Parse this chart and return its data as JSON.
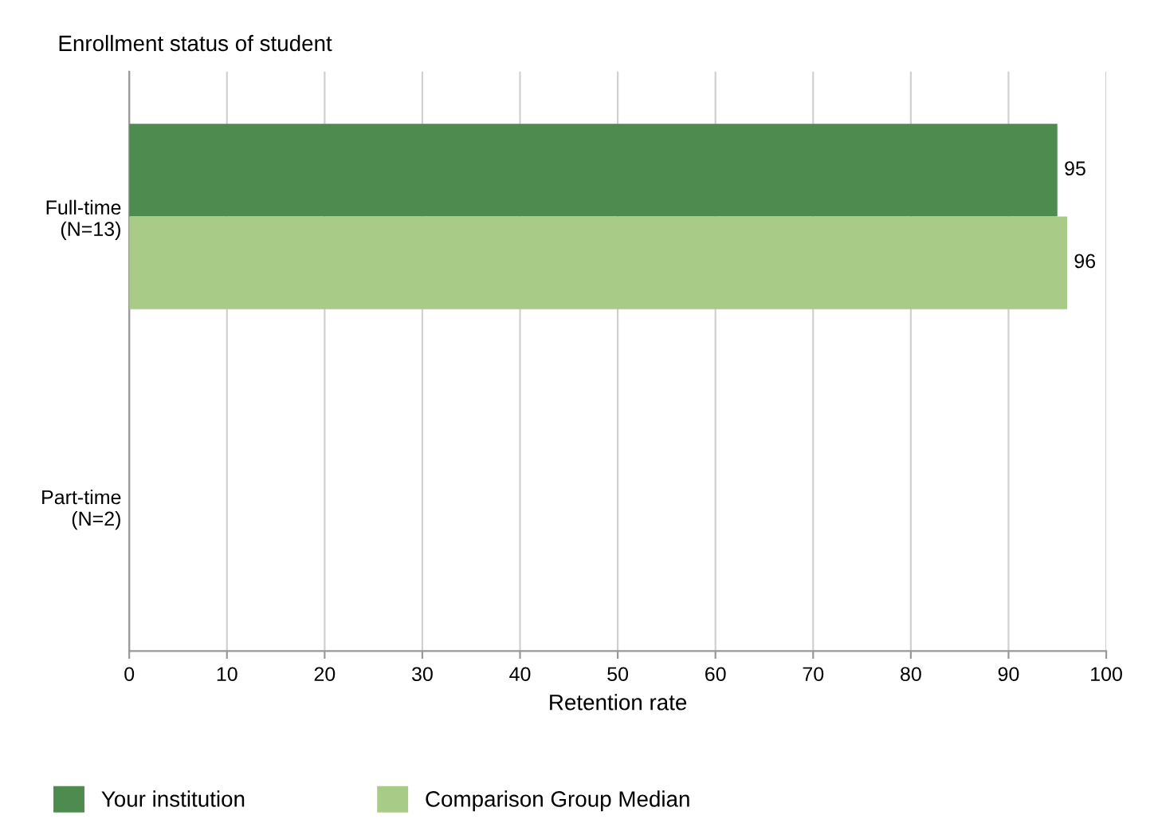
{
  "chart_data": {
    "type": "bar",
    "orientation": "horizontal",
    "title": "Enrollment status of student",
    "xlabel": "Retention rate",
    "categories": [
      "Full-time\n(N=13)",
      "Part-time\n(N=2)"
    ],
    "series": [
      {
        "name": "Your institution",
        "color": "#4e8b4e",
        "values": [
          95,
          null
        ]
      },
      {
        "name": "Comparison Group Median",
        "color": "#a8cc88",
        "values": [
          96,
          null
        ]
      }
    ],
    "xlim": [
      0,
      100
    ],
    "xticks": [
      0,
      10,
      20,
      30,
      40,
      50,
      60,
      70,
      80,
      90,
      100
    ],
    "grid": "x",
    "legend": "bottom",
    "data_labels": true
  }
}
